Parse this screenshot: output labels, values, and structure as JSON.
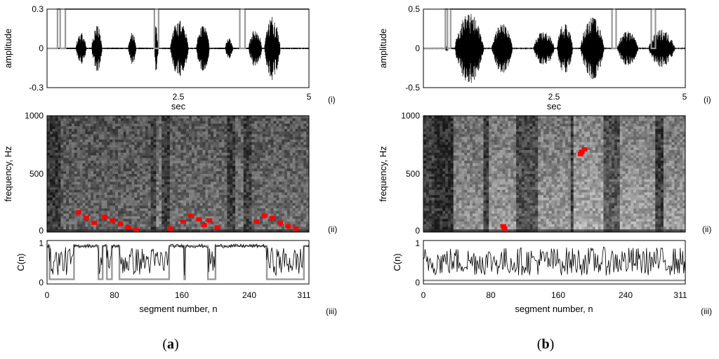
{
  "colors": {
    "signal": "#000000",
    "decision": "#9a9a9a",
    "highlight": "#ff0000",
    "spectrogram_dark": "#1e1e1e",
    "spectrogram_light": "#dcdcdc"
  },
  "chart_data": [
    {
      "panel": "a",
      "caption_open": "(",
      "caption_letter": "a",
      "caption_close": ")",
      "subplots": [
        {
          "id": "i",
          "roman": "(i)",
          "type": "line",
          "xlabel": "sec",
          "ylabel": "amplitude",
          "xlim": [
            0,
            5
          ],
          "ylim": [
            -0.3,
            0.3
          ],
          "xticks": [
            "2.5",
            "5"
          ],
          "yticks": [
            "0.3",
            "0",
            "-0.3"
          ],
          "waveform_bursts": [
            {
              "start": 0.55,
              "end": 0.75,
              "amp": 0.12
            },
            {
              "start": 0.85,
              "end": 1.05,
              "amp": 0.18
            },
            {
              "start": 1.55,
              "end": 1.7,
              "amp": 0.12
            },
            {
              "start": 2.05,
              "end": 2.12,
              "amp": 0.2
            },
            {
              "start": 2.35,
              "end": 2.7,
              "amp": 0.22
            },
            {
              "start": 2.85,
              "end": 3.1,
              "amp": 0.19
            },
            {
              "start": 3.4,
              "end": 3.55,
              "amp": 0.08
            },
            {
              "start": 3.85,
              "end": 4.1,
              "amp": 0.16
            },
            {
              "start": 4.15,
              "end": 4.45,
              "amp": 0.26
            }
          ],
          "series": [
            {
              "values_x": [
                0,
                0.2,
                0.2,
                0.25,
                0.25,
                0.35,
                0.35,
                2.05,
                2.05,
                2.13,
                2.13,
                3.68,
                3.68,
                3.78,
                3.78,
                5
              ],
              "values_y": [
                0,
                0,
                0.3,
                0.3,
                0,
                0,
                0.3,
                0.3,
                0,
                0,
                0.3,
                0.3,
                0,
                0,
                0.3,
                0.3
              ]
            }
          ]
        },
        {
          "id": "ii",
          "roman": "(ii)",
          "type": "heatmap",
          "ylabel": "frequency, Hz",
          "ylim": [
            0,
            1000
          ],
          "yticks": [
            "1000",
            "500",
            "0"
          ],
          "bright_bands": [
            {
              "x0": 0.0,
              "x1": 0.05,
              "level": 0.2
            },
            {
              "x0": 0.05,
              "x1": 0.4,
              "level": 0.45
            },
            {
              "x0": 0.42,
              "x1": 0.44,
              "level": 0.6
            },
            {
              "x0": 0.47,
              "x1": 0.69,
              "level": 0.5
            },
            {
              "x0": 0.72,
              "x1": 0.75,
              "level": 0.55
            },
            {
              "x0": 0.78,
              "x1": 1.0,
              "level": 0.5
            }
          ],
          "red_marks": [
            {
              "x": 0.12,
              "y": 170
            },
            {
              "x": 0.15,
              "y": 120
            },
            {
              "x": 0.18,
              "y": 80
            },
            {
              "x": 0.22,
              "y": 130
            },
            {
              "x": 0.25,
              "y": 100
            },
            {
              "x": 0.28,
              "y": 70
            },
            {
              "x": 0.31,
              "y": 40
            },
            {
              "x": 0.34,
              "y": 20
            },
            {
              "x": 0.47,
              "y": 30
            },
            {
              "x": 0.52,
              "y": 90
            },
            {
              "x": 0.55,
              "y": 140
            },
            {
              "x": 0.58,
              "y": 110
            },
            {
              "x": 0.6,
              "y": 60
            },
            {
              "x": 0.62,
              "y": 100
            },
            {
              "x": 0.65,
              "y": 40
            },
            {
              "x": 0.8,
              "y": 90
            },
            {
              "x": 0.83,
              "y": 140
            },
            {
              "x": 0.86,
              "y": 120
            },
            {
              "x": 0.89,
              "y": 80
            },
            {
              "x": 0.92,
              "y": 50
            },
            {
              "x": 0.95,
              "y": 30
            }
          ]
        },
        {
          "id": "iii",
          "roman": "(iii)",
          "type": "line",
          "xlabel": "segment number, n",
          "ylabel": "C(n)",
          "xlim": [
            0,
            311
          ],
          "ylim": [
            0,
            1
          ],
          "xticks": [
            "0",
            "80",
            "160",
            "240",
            "311"
          ],
          "yticks": [
            "1",
            "0"
          ],
          "high_segments": [
            [
              0,
              2
            ],
            [
              32,
              36
            ],
            [
              37,
              60
            ],
            [
              66,
              70
            ],
            [
              77,
              85
            ],
            [
              145,
              162
            ],
            [
              164,
              190
            ],
            [
              200,
              260
            ],
            [
              305,
              311
            ]
          ],
          "decision_y": [
            0.05,
            0.93
          ]
        }
      ]
    },
    {
      "panel": "b",
      "caption_open": "(",
      "caption_letter": "b",
      "caption_close": ")",
      "subplots": [
        {
          "id": "i",
          "roman": "(i)",
          "type": "line",
          "xlabel": "sec",
          "ylabel": "amplitude",
          "xlim": [
            0,
            5
          ],
          "ylim": [
            -0.5,
            0.5
          ],
          "xticks": [
            "2.5",
            "5"
          ],
          "yticks": [
            "0.5",
            "0",
            "-0.5"
          ],
          "waveform_bursts": [
            {
              "start": 0.4,
              "end": 0.48,
              "amp": 0.04
            },
            {
              "start": 0.6,
              "end": 1.15,
              "amp": 0.45
            },
            {
              "start": 1.3,
              "end": 1.7,
              "amp": 0.32
            },
            {
              "start": 2.1,
              "end": 2.5,
              "amp": 0.22
            },
            {
              "start": 2.55,
              "end": 2.85,
              "amp": 0.34
            },
            {
              "start": 3.0,
              "end": 3.45,
              "amp": 0.4
            },
            {
              "start": 3.7,
              "end": 4.1,
              "amp": 0.22
            },
            {
              "start": 4.3,
              "end": 4.8,
              "amp": 0.24
            }
          ],
          "series": [
            {
              "values_x": [
                0,
                0.42,
                0.42,
                0.46,
                0.46,
                0.52,
                0.52,
                3.6,
                3.6,
                3.68,
                3.68,
                4.35,
                4.35,
                4.43,
                4.43,
                5
              ],
              "values_y": [
                0,
                0,
                0.5,
                0.5,
                0,
                0,
                0.5,
                0.5,
                0,
                0,
                0.5,
                0.5,
                0,
                0,
                0.5,
                0.5
              ]
            }
          ]
        },
        {
          "id": "ii",
          "roman": "(ii)",
          "type": "heatmap",
          "ylabel": "frequency, Hz",
          "ylim": [
            0,
            1000
          ],
          "yticks": [
            "1000",
            "500",
            "0"
          ],
          "bright_bands": [
            {
              "x0": 0.0,
              "x1": 0.04,
              "level": 0.25
            },
            {
              "x0": 0.04,
              "x1": 0.11,
              "level": 0.15
            },
            {
              "x0": 0.11,
              "x1": 0.23,
              "level": 0.7
            },
            {
              "x0": 0.25,
              "x1": 0.35,
              "level": 0.75
            },
            {
              "x0": 0.35,
              "x1": 0.44,
              "level": 0.35
            },
            {
              "x0": 0.44,
              "x1": 0.56,
              "level": 0.75
            },
            {
              "x0": 0.57,
              "x1": 0.69,
              "level": 0.85
            },
            {
              "x0": 0.69,
              "x1": 0.75,
              "level": 0.4
            },
            {
              "x0": 0.75,
              "x1": 0.89,
              "level": 0.8
            },
            {
              "x0": 0.89,
              "x1": 0.92,
              "level": 0.25
            },
            {
              "x0": 0.92,
              "x1": 1.0,
              "level": 0.75
            }
          ],
          "red_marks": [
            {
              "x": 0.605,
              "y": 690
            },
            {
              "x": 0.615,
              "y": 710
            },
            {
              "x": 0.6,
              "y": 670
            },
            {
              "x": 0.305,
              "y": 50
            },
            {
              "x": 0.31,
              "y": 30
            }
          ]
        },
        {
          "id": "iii",
          "roman": "(iii)",
          "type": "line",
          "xlabel": "segment number, n",
          "ylabel": "C(n)",
          "xlim": [
            0,
            311
          ],
          "ylim": [
            0,
            1
          ],
          "xticks": [
            "0",
            "80",
            "160",
            "240",
            "311"
          ],
          "yticks": [
            "1",
            "0"
          ],
          "high_segments": [],
          "decision_y": [
            0.02,
            0.93
          ]
        }
      ]
    }
  ]
}
